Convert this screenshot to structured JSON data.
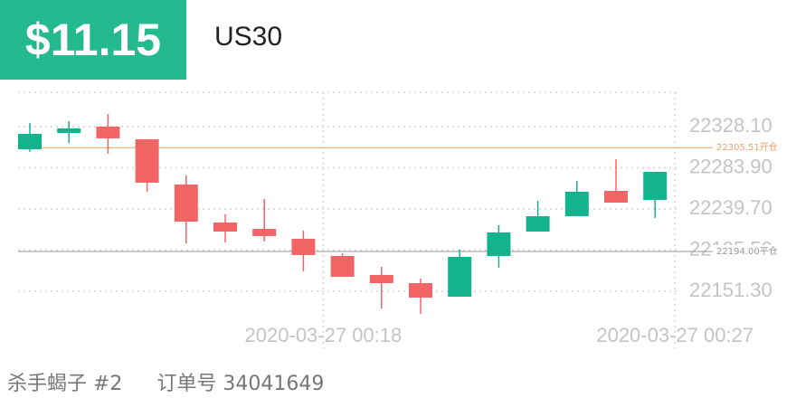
{
  "header": {
    "amount": "$11.15",
    "symbol": "US30"
  },
  "chart_data": {
    "type": "candlestick",
    "x": [
      null,
      null,
      null,
      null,
      null,
      null,
      null,
      "2020-03-27 00:18",
      null,
      null,
      null,
      null,
      null,
      null,
      null,
      null,
      "2020-03-27 00:27"
    ],
    "open": [
      22303.8,
      22321.3,
      22328.1,
      22314.5,
      22265.9,
      22225.1,
      22218.3,
      22207.6,
      22189.2,
      22168.8,
      22160.0,
      22145.5,
      22189.2,
      22215.4,
      22231.9,
      22259.1,
      22249.4
    ],
    "high": [
      22332.0,
      22333.9,
      22341.7,
      22314.5,
      22275.6,
      22233.9,
      22250.4,
      22216.4,
      22192.1,
      22177.5,
      22164.9,
      22196.0,
      22222.2,
      22248.5,
      22269.8,
      22293.1,
      22279.5
    ],
    "low": [
      22300.9,
      22310.6,
      22299.0,
      22258.2,
      22202.8,
      22203.8,
      22204.7,
      22172.7,
      22166.8,
      22132.8,
      22127.0,
      22145.5,
      22176.6,
      22215.4,
      22231.9,
      22246.5,
      22230.0
    ],
    "close": [
      22320.3,
      22326.2,
      22315.5,
      22267.9,
      22226.1,
      22215.4,
      22210.6,
      22190.2,
      22166.8,
      22160.0,
      22144.5,
      22188.2,
      22214.5,
      22231.9,
      22258.2,
      22246.5,
      22279.5
    ],
    "up_color": "#13b38e",
    "down_color": "#f26565",
    "ylim": [
      22106.6,
      22365.0
    ],
    "yticks": [
      {
        "value": 22328.1,
        "label": "22328.10"
      },
      {
        "value": 22283.9,
        "label": "22283.90"
      },
      {
        "value": 22239.7,
        "label": "22239.70"
      },
      {
        "value": 22195.5,
        "label": "22195.50"
      },
      {
        "value": 22151.3,
        "label": "22151.30"
      }
    ],
    "grid": true,
    "reference_lines": [
      {
        "value": 22305.51,
        "label": "22305.51开仓",
        "color": "#f4a06a"
      },
      {
        "value": 22194.0,
        "label": "22194.00平仓",
        "color": "#999999"
      }
    ]
  },
  "footer": {
    "name": "杀手蝎子 #2",
    "order": "订单号 34041649"
  }
}
